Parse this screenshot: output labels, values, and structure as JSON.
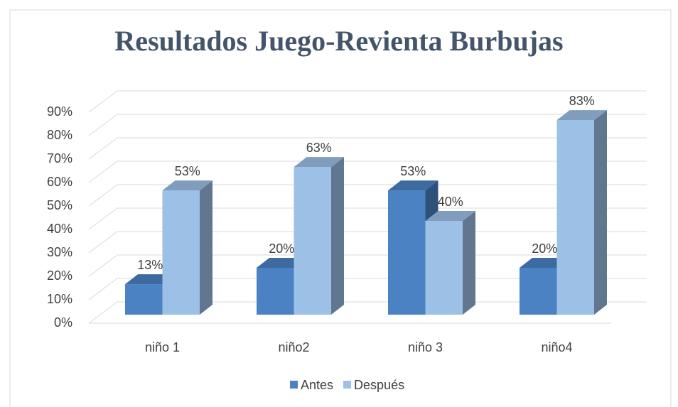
{
  "chart_data": {
    "type": "bar3d",
    "title": "Resultados Juego-Revienta Burbujas",
    "categories": [
      "niño 1",
      "niño2",
      "niño 3",
      "niño4"
    ],
    "series": [
      {
        "name": "Antes",
        "color": "#4a82c3",
        "values": [
          13,
          20,
          53,
          20
        ],
        "value_labels": [
          "13%",
          "20%",
          "53%",
          "20%"
        ]
      },
      {
        "name": "Después",
        "color": "#9dc0e6",
        "values": [
          53,
          63,
          40,
          83
        ],
        "value_labels": [
          "53%",
          "63%",
          "40%",
          "83%"
        ]
      }
    ],
    "ylim": [
      0,
      90
    ],
    "yticks": [
      {
        "value": 0,
        "label": "0%"
      },
      {
        "value": 10,
        "label": "10%"
      },
      {
        "value": 20,
        "label": "20%"
      },
      {
        "value": 30,
        "label": "30%"
      },
      {
        "value": 40,
        "label": "40%"
      },
      {
        "value": 50,
        "label": "50%"
      },
      {
        "value": 60,
        "label": "60%"
      },
      {
        "value": 70,
        "label": "70%"
      },
      {
        "value": 80,
        "label": "80%"
      },
      {
        "value": 90,
        "label": "90%"
      }
    ],
    "grid": true,
    "legend": "bottom"
  }
}
